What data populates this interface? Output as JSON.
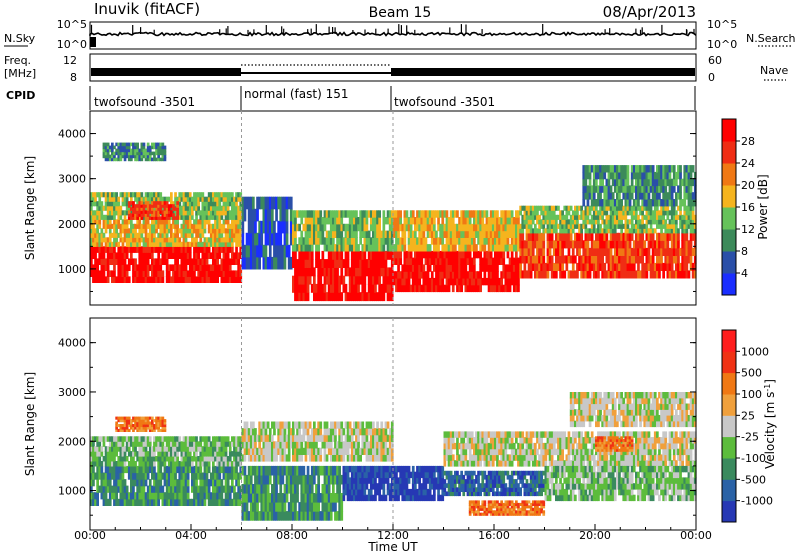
{
  "header": {
    "station": "Inuvik (fitACF)",
    "beam": "Beam 15",
    "date": "08/Apr/2013"
  },
  "side_labels": {
    "nsky": "N.Sky",
    "freq_line1": "Freq.",
    "freq_line2": "[MHz]",
    "cpid": "CPID",
    "nsearch": "N.Search",
    "nave": "Nave"
  },
  "nsky_axis": {
    "left_ticks": [
      "10^5",
      "10^0"
    ],
    "right_ticks": [
      "10^5",
      "10^0"
    ]
  },
  "freq_axis": {
    "left_ticks": [
      "12",
      "8"
    ],
    "right_ticks": [
      "60",
      "0"
    ]
  },
  "cpid_segments": [
    {
      "label": "twofsound -3501",
      "start_hour": 0,
      "end_hour": 6
    },
    {
      "label": "normal (fast) 151",
      "start_hour": 6,
      "end_hour": 12
    },
    {
      "label": "twofsound -3501",
      "start_hour": 12,
      "end_hour": 24
    }
  ],
  "range_axis": {
    "label": "Slant Range [km]",
    "ticks": [
      "1000",
      "2000",
      "3000",
      "4000"
    ]
  },
  "time_axis": {
    "label": "Time UT",
    "ticks": [
      "00:00",
      "04:00",
      "08:00",
      "12:00",
      "16:00",
      "20:00",
      "00:00"
    ]
  },
  "power_colorbar": {
    "label": "Power [dB]",
    "ticks": [
      "4",
      "8",
      "12",
      "16",
      "20",
      "24",
      "28"
    ],
    "colors": [
      "#1a2eff",
      "#2a4fa8",
      "#3c8a5a",
      "#66c25a",
      "#f5b41e",
      "#f07814",
      "#f02d14",
      "#ff0000"
    ]
  },
  "velocity_colorbar": {
    "label": "Velocity [m s",
    "label_sup": "-1",
    "label_end": "]",
    "ticks": [
      "1000",
      "500",
      "100",
      "25",
      "-25",
      "-100",
      "-500",
      "-1000"
    ],
    "colors": [
      "#2638b4",
      "#2a62a6",
      "#3a8a5e",
      "#5cbc3c",
      "#c8c8c8",
      "#f0a03c",
      "#f07814",
      "#f03214",
      "#ff1e1e"
    ]
  },
  "chart_data": [
    {
      "type": "heatmap",
      "title": "Power",
      "xlabel": "Time UT",
      "ylabel": "Slant Range [km]",
      "x_range_hours": [
        0,
        24
      ],
      "ylim": [
        200,
        4500
      ],
      "colorbar_label": "Power [dB]",
      "bands": [
        {
          "t0": 0,
          "t1": 6,
          "r0": 700,
          "r1": 1500,
          "level": 7
        },
        {
          "t0": 0,
          "t1": 6,
          "r0": 1500,
          "r1": 2100,
          "level": 4
        },
        {
          "t0": 0,
          "t1": 6,
          "r0": 2100,
          "r1": 2700,
          "level": 3
        },
        {
          "t0": 1.5,
          "t1": 3.5,
          "r0": 2100,
          "r1": 2500,
          "level": 6
        },
        {
          "t0": 6,
          "t1": 8,
          "r0": 1000,
          "r1": 2600,
          "level": 1
        },
        {
          "t0": 8,
          "t1": 12,
          "r0": 300,
          "r1": 1400,
          "level": 7
        },
        {
          "t0": 8,
          "t1": 12,
          "r0": 1400,
          "r1": 2300,
          "level": 3
        },
        {
          "t0": 12,
          "t1": 17,
          "r0": 500,
          "r1": 1400,
          "level": 7
        },
        {
          "t0": 12,
          "t1": 17,
          "r0": 1400,
          "r1": 2300,
          "level": 4
        },
        {
          "t0": 17,
          "t1": 24,
          "r0": 800,
          "r1": 1800,
          "level": 6
        },
        {
          "t0": 17,
          "t1": 24,
          "r0": 1800,
          "r1": 2400,
          "level": 3
        },
        {
          "t0": 19.5,
          "t1": 24,
          "r0": 2400,
          "r1": 3300,
          "level": 2
        },
        {
          "t0": 0.5,
          "t1": 3,
          "r0": 3400,
          "r1": 3800,
          "level": 2
        }
      ]
    },
    {
      "type": "heatmap",
      "title": "Velocity",
      "xlabel": "Time UT",
      "ylabel": "Slant Range [km]",
      "x_range_hours": [
        0,
        24
      ],
      "ylim": [
        200,
        4500
      ],
      "colorbar_label": "Velocity [m s-1]",
      "bands": [
        {
          "t0": 0,
          "t1": 6,
          "r0": 700,
          "r1": 1500,
          "level": 2
        },
        {
          "t0": 0,
          "t1": 6,
          "r0": 1500,
          "r1": 2100,
          "level": 3
        },
        {
          "t0": 1,
          "t1": 3,
          "r0": 2200,
          "r1": 2500,
          "level": 6
        },
        {
          "t0": 6,
          "t1": 10,
          "r0": 400,
          "r1": 1500,
          "level": 2
        },
        {
          "t0": 6,
          "t1": 12,
          "r0": 1600,
          "r1": 2400,
          "level": 4
        },
        {
          "t0": 10,
          "t1": 14,
          "r0": 800,
          "r1": 1500,
          "level": 0
        },
        {
          "t0": 14,
          "t1": 18,
          "r0": 900,
          "r1": 1400,
          "level": 1
        },
        {
          "t0": 15,
          "t1": 18,
          "r0": 500,
          "r1": 800,
          "level": 6
        },
        {
          "t0": 14,
          "t1": 24,
          "r0": 1500,
          "r1": 2200,
          "level": 4
        },
        {
          "t0": 18,
          "t1": 24,
          "r0": 800,
          "r1": 1500,
          "level": 3
        },
        {
          "t0": 19,
          "t1": 24,
          "r0": 2300,
          "r1": 3000,
          "level": 4
        },
        {
          "t0": 20,
          "t1": 21.5,
          "r0": 1800,
          "r1": 2100,
          "level": 6
        }
      ]
    }
  ]
}
